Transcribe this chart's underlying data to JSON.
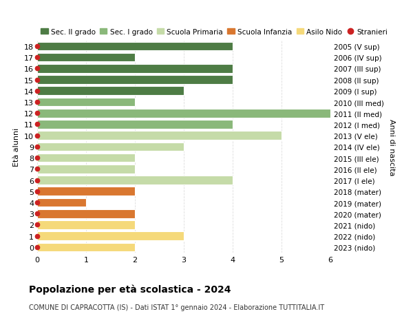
{
  "ages": [
    18,
    17,
    16,
    15,
    14,
    13,
    12,
    11,
    10,
    9,
    8,
    7,
    6,
    5,
    4,
    3,
    2,
    1,
    0
  ],
  "right_labels": [
    "2005 (V sup)",
    "2006 (IV sup)",
    "2007 (III sup)",
    "2008 (II sup)",
    "2009 (I sup)",
    "2010 (III med)",
    "2011 (II med)",
    "2012 (I med)",
    "2013 (V ele)",
    "2014 (IV ele)",
    "2015 (III ele)",
    "2016 (II ele)",
    "2017 (I ele)",
    "2018 (mater)",
    "2019 (mater)",
    "2020 (mater)",
    "2021 (nido)",
    "2022 (nido)",
    "2023 (nido)"
  ],
  "values": [
    4,
    2,
    4,
    4,
    3,
    2,
    6,
    4,
    5,
    3,
    2,
    2,
    4,
    2,
    1,
    2,
    2,
    3,
    2
  ],
  "bar_colors": [
    "#4e7c45",
    "#4e7c45",
    "#4e7c45",
    "#4e7c45",
    "#4e7c45",
    "#8ab87a",
    "#8ab87a",
    "#8ab87a",
    "#c5dba8",
    "#c5dba8",
    "#c5dba8",
    "#c5dba8",
    "#c5dba8",
    "#d97730",
    "#d97730",
    "#d97730",
    "#f5d97a",
    "#f5d97a",
    "#f5d97a"
  ],
  "legend_labels": [
    "Sec. II grado",
    "Sec. I grado",
    "Scuola Primaria",
    "Scuola Infanzia",
    "Asilo Nido",
    "Stranieri"
  ],
  "legend_colors": [
    "#4e7c45",
    "#8ab87a",
    "#c5dba8",
    "#d97730",
    "#f5d97a",
    "#cc2222"
  ],
  "stranieri_marker_color": "#cc2222",
  "ylabel_left": "Età alunni",
  "ylabel_right": "Anni di nascita",
  "title": "Popolazione per età scolastica - 2024",
  "subtitle": "COMUNE DI CAPRACOTTA (IS) - Dati ISTAT 1° gennaio 2024 - Elaborazione TUTTITALIA.IT",
  "xlim": [
    0,
    6
  ],
  "xticks": [
    0,
    1,
    2,
    3,
    4,
    5,
    6
  ],
  "background_color": "#ffffff",
  "grid_color": "#dddddd"
}
